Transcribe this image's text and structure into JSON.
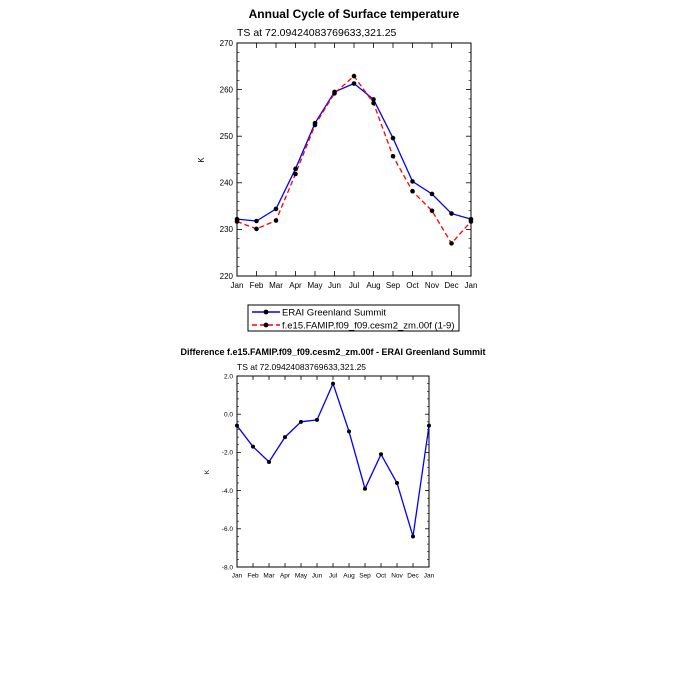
{
  "chart_data": [
    {
      "type": "line",
      "title": "Annual Cycle of Surface temperature",
      "subtitle": "TS at 72.09424083769633,321.25",
      "xlabel": "",
      "ylabel": "K",
      "categories": [
        "Jan",
        "Feb",
        "Mar",
        "Apr",
        "May",
        "Jun",
        "Jul",
        "Aug",
        "Sep",
        "Oct",
        "Nov",
        "Dec",
        "Jan"
      ],
      "ylim": [
        220,
        270
      ],
      "yticks": [
        220,
        230,
        240,
        250,
        260,
        270
      ],
      "ytick_labels": [
        "220",
        "230",
        "240",
        "250",
        "260",
        "270"
      ],
      "grid": false,
      "legend": "bottom",
      "series": [
        {
          "name": "ERAI Greenland Summit",
          "color": "#0000ff",
          "dash": "solid",
          "values": [
            232.2,
            231.8,
            234.4,
            243.0,
            252.8,
            259.5,
            261.3,
            257.9,
            249.6,
            240.3,
            237.6,
            233.4,
            232.2
          ]
        },
        {
          "name": "f.e15.FAMIP.f09_f09.cesm2_zm.00f (1-9)",
          "color": "#ff0000",
          "dash": "dashed",
          "values": [
            231.7,
            230.1,
            231.9,
            241.9,
            252.4,
            259.2,
            262.9,
            257.1,
            245.7,
            238.2,
            234.0,
            227.0,
            231.7
          ]
        }
      ]
    },
    {
      "type": "line",
      "title": "Difference f.e15.FAMIP.f09_f09.cesm2_zm.00f - ERAI Greenland Summit",
      "subtitle": "TS at 72.09424083769633,321.25",
      "xlabel": "",
      "ylabel": "K",
      "categories": [
        "Jan",
        "Feb",
        "Mar",
        "Apr",
        "May",
        "Jun",
        "Jul",
        "Aug",
        "Sep",
        "Oct",
        "Nov",
        "Dec",
        "Jan"
      ],
      "ylim": [
        -8.0,
        2.0
      ],
      "yticks": [
        -8,
        -6,
        -4,
        -2,
        0,
        2
      ],
      "ytick_labels": [
        "-8.0",
        "-6.0",
        "-4.0",
        "-2.0",
        "0.0",
        "2.0"
      ],
      "grid": false,
      "series": [
        {
          "color": "#0000ff",
          "dash": "solid",
          "values": [
            -0.6,
            -1.7,
            -2.5,
            -1.2,
            -0.4,
            -0.3,
            1.6,
            -0.9,
            -3.9,
            -2.1,
            -3.6,
            -6.4,
            -0.6
          ]
        }
      ]
    }
  ]
}
